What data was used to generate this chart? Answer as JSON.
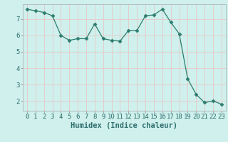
{
  "xlabel": "Humidex (Indice chaleur)",
  "x": [
    0,
    1,
    2,
    3,
    4,
    5,
    6,
    7,
    8,
    9,
    10,
    11,
    12,
    13,
    14,
    15,
    16,
    17,
    18,
    19,
    20,
    21,
    22,
    23
  ],
  "y": [
    7.6,
    7.5,
    7.4,
    7.2,
    6.0,
    5.7,
    5.8,
    5.8,
    6.7,
    5.8,
    5.7,
    5.65,
    6.3,
    6.3,
    7.2,
    7.25,
    7.6,
    6.8,
    6.1,
    3.35,
    2.4,
    1.9,
    2.0,
    1.8
  ],
  "line_color": "#2d7d6e",
  "marker": "D",
  "marker_size": 2.5,
  "background_color": "#cff0ec",
  "grid_color": "#e8c8c8",
  "ylim": [
    1.4,
    7.9
  ],
  "yticks": [
    2,
    3,
    4,
    5,
    6,
    7
  ],
  "xlim": [
    -0.5,
    23.5
  ],
  "xlabel_fontsize": 7.5,
  "tick_fontsize": 6.5
}
